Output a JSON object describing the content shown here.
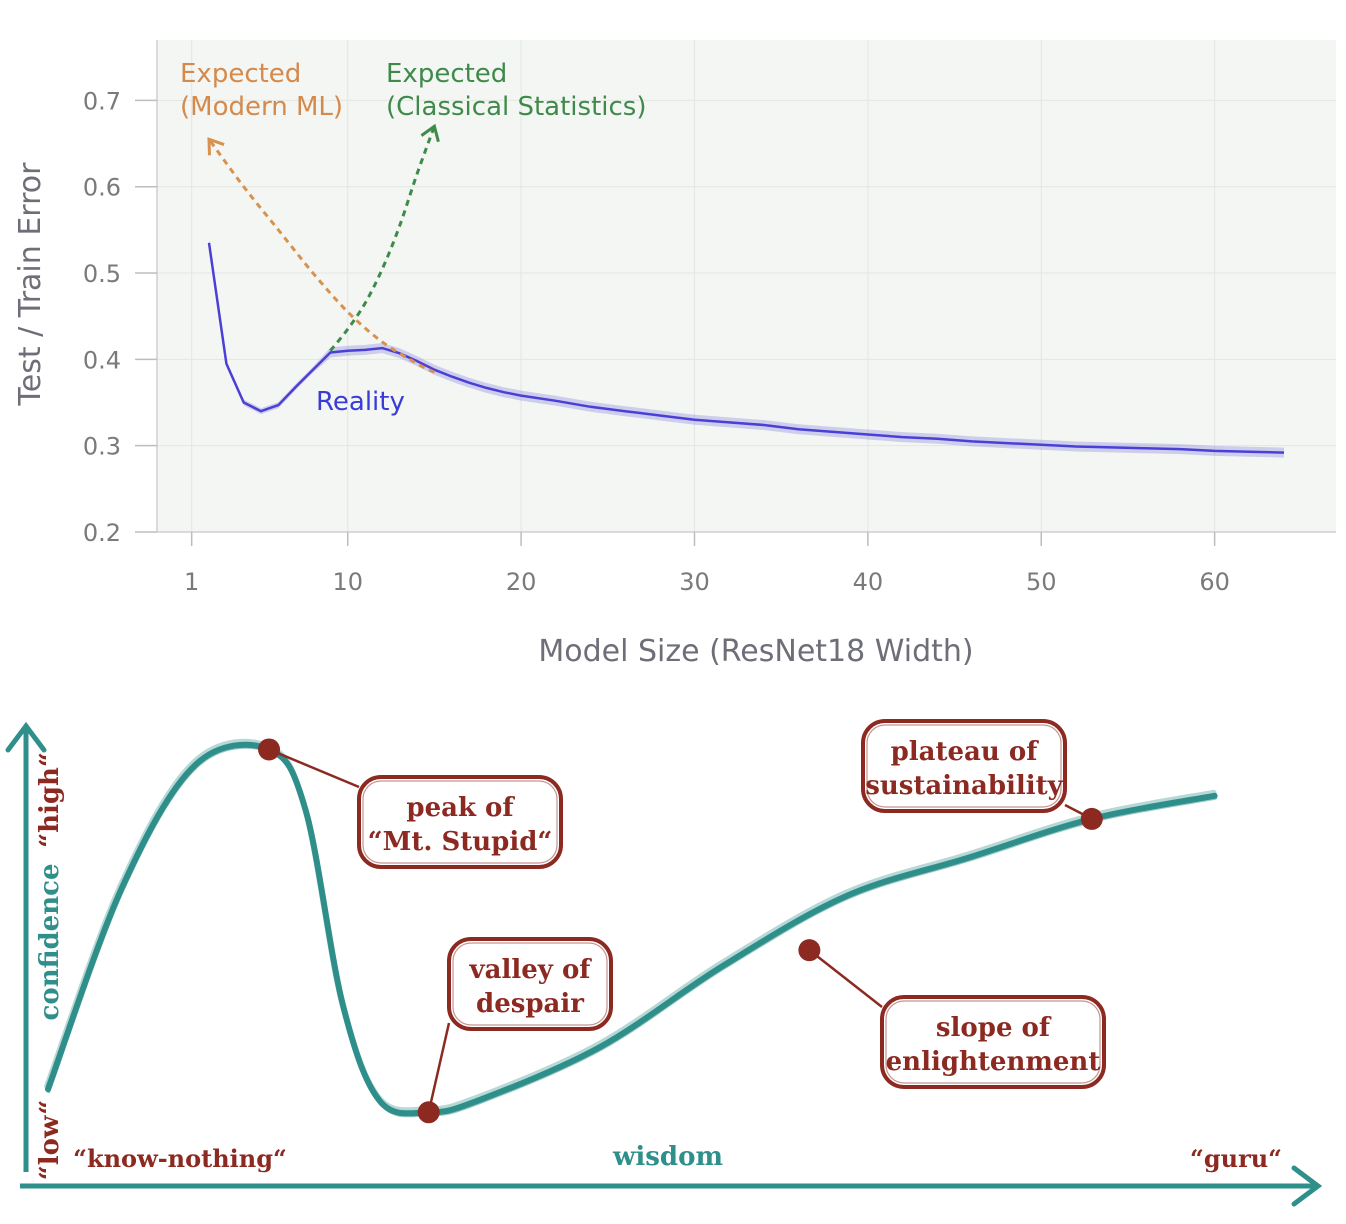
{
  "chart_data": [
    {
      "type": "line",
      "title": "",
      "xlabel": "Model Size (ResNet18 Width)",
      "ylabel": "Test / Train Error",
      "xlim": [
        -1,
        67
      ],
      "ylim": [
        0.2,
        0.77
      ],
      "xticks": [
        1,
        10,
        20,
        30,
        40,
        50,
        60
      ],
      "yticks": [
        0.2,
        0.3,
        0.4,
        0.5,
        0.6,
        0.7
      ],
      "grid": true,
      "colors": {
        "reality": "#4b3fd6",
        "modern": "#d9924e",
        "classical": "#3f8a4a"
      },
      "series": [
        {
          "name": "Reality",
          "x": [
            2,
            3,
            4,
            5,
            6,
            7,
            8,
            9,
            10,
            11,
            12,
            13,
            14,
            15,
            16,
            17,
            18,
            19,
            20,
            22,
            24,
            26,
            28,
            30,
            32,
            34,
            36,
            38,
            40,
            42,
            44,
            46,
            48,
            50,
            52,
            54,
            56,
            58,
            60,
            62,
            64
          ],
          "y": [
            0.535,
            0.395,
            0.35,
            0.34,
            0.347,
            0.368,
            0.388,
            0.408,
            0.41,
            0.411,
            0.413,
            0.407,
            0.398,
            0.388,
            0.38,
            0.373,
            0.367,
            0.362,
            0.358,
            0.352,
            0.345,
            0.34,
            0.335,
            0.33,
            0.327,
            0.324,
            0.319,
            0.316,
            0.313,
            0.31,
            0.308,
            0.305,
            0.303,
            0.301,
            0.299,
            0.298,
            0.297,
            0.296,
            0.294,
            0.293,
            0.292
          ]
        },
        {
          "name": "Expected\n(Modern ML)",
          "x": [
            2,
            4,
            6,
            8,
            10,
            12,
            14,
            15
          ],
          "y": [
            0.655,
            0.6,
            0.55,
            0.5,
            0.455,
            0.42,
            0.395,
            0.385
          ]
        },
        {
          "name": "Expected\n(Classical Statistics)",
          "x": [
            9,
            10,
            11,
            12,
            13,
            14,
            15
          ],
          "y": [
            0.41,
            0.435,
            0.465,
            0.505,
            0.555,
            0.615,
            0.67
          ]
        }
      ],
      "annotations": {
        "modern_line1": "Expected",
        "modern_line2": "(Modern ML)",
        "classical_line1": "Expected",
        "classical_line2": "(Classical Statistics)",
        "reality": "Reality"
      }
    },
    {
      "type": "line",
      "title": "",
      "xlabel": "wisdom",
      "ylabel": "confidence",
      "xlim": [
        0,
        100
      ],
      "ylim": [
        0,
        100
      ],
      "curve_color": "#2f8f8a",
      "marker_color": "#8c2a22",
      "x_labels": {
        "left": "“know-nothing“",
        "center": "wisdom",
        "right": "“guru“"
      },
      "y_labels": {
        "low": "“low“",
        "mid": "confidence",
        "high": "“high“"
      },
      "series": [
        {
          "name": "",
          "x": [
            0,
            6,
            12,
            18,
            21,
            24,
            27,
            31,
            35,
            45,
            55,
            65,
            75,
            85,
            95
          ],
          "y": [
            8,
            60,
            92,
            96,
            80,
            30,
            5,
            2,
            5,
            19,
            40,
            58,
            68,
            78,
            84
          ]
        }
      ],
      "points": [
        {
          "label_lines": [
            "peak of",
            "“Mt. Stupid“"
          ],
          "x": 18,
          "y": 96
        },
        {
          "label_lines": [
            "valley of",
            "despair"
          ],
          "x": 31,
          "y": 2
        },
        {
          "label_lines": [
            "slope of",
            "enlightenment"
          ],
          "x": 62,
          "y": 44
        },
        {
          "label_lines": [
            "plateau of",
            "sustainability"
          ],
          "x": 85,
          "y": 78
        }
      ]
    }
  ]
}
